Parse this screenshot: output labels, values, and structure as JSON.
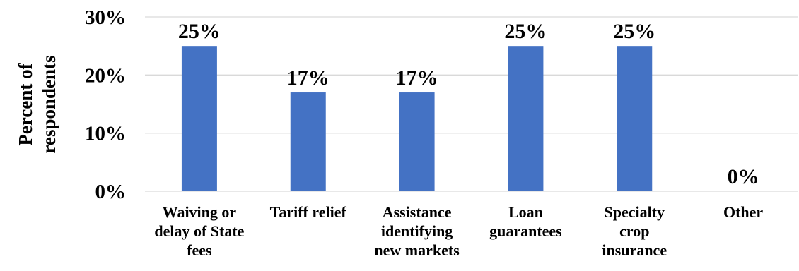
{
  "chart_data": {
    "type": "bar",
    "categories": [
      [
        "Waiving or",
        "delay of State",
        "fees"
      ],
      [
        "Tariff relief"
      ],
      [
        "Assistance",
        "identifying",
        "new markets"
      ],
      [
        "Loan",
        "guarantees"
      ],
      [
        "Specialty",
        "crop",
        "insurance"
      ],
      [
        "Other"
      ]
    ],
    "values": [
      25,
      17,
      17,
      25,
      25,
      0
    ],
    "data_labels": [
      "25%",
      "17%",
      "17%",
      "25%",
      "25%",
      "0%"
    ],
    "ylabel": [
      "Percent of",
      "respondents"
    ],
    "yticks": [
      "0%",
      "10%",
      "20%",
      "30%"
    ],
    "ylim": [
      0,
      30
    ],
    "grid": true,
    "bar_color": "#4472C4",
    "grid_color": "#D9D9D9",
    "legend": "none"
  }
}
